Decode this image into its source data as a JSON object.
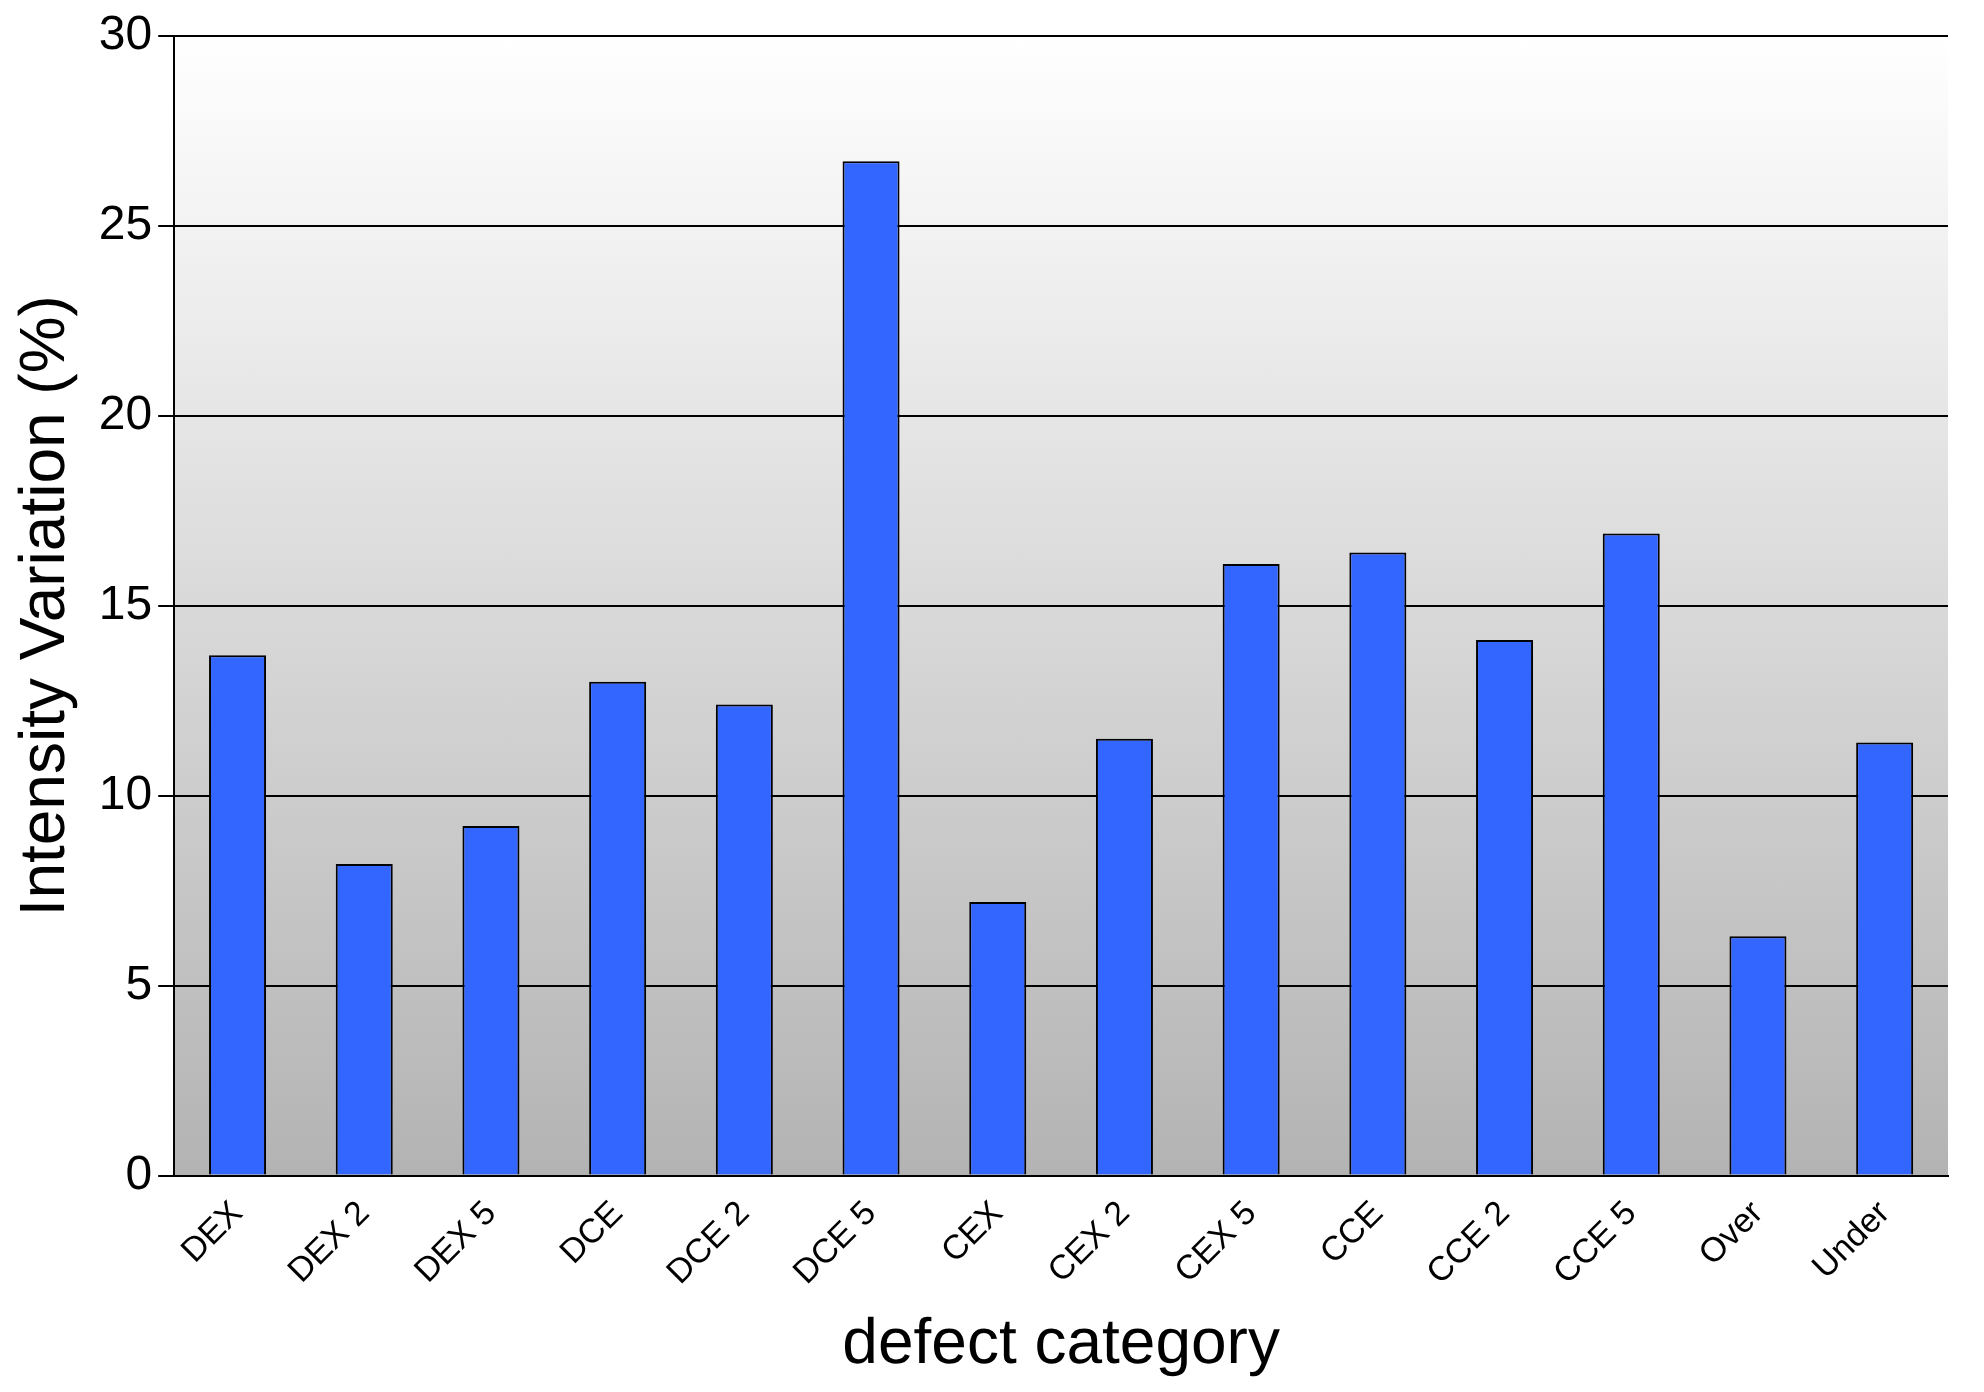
{
  "chart_data": {
    "type": "bar",
    "xlabel": "defect category",
    "ylabel": "Intensity Variation (%)",
    "categories": [
      "DEX",
      "DEX 2",
      "DEX 5",
      "DCE",
      "DCE 2",
      "DCE 5",
      "CEX",
      "CEX 2",
      "CEX 5",
      "CCE",
      "CCE 2",
      "CCE 5",
      "Over",
      "Under"
    ],
    "values": [
      13.7,
      8.2,
      9.2,
      13.0,
      12.4,
      26.7,
      7.2,
      11.5,
      16.1,
      16.4,
      14.1,
      16.9,
      6.3,
      11.4
    ],
    "color": "#3366ff",
    "ylim": [
      0,
      30
    ],
    "yticks": [
      0,
      5,
      10,
      15,
      20,
      25,
      30
    ],
    "grid": "y"
  }
}
